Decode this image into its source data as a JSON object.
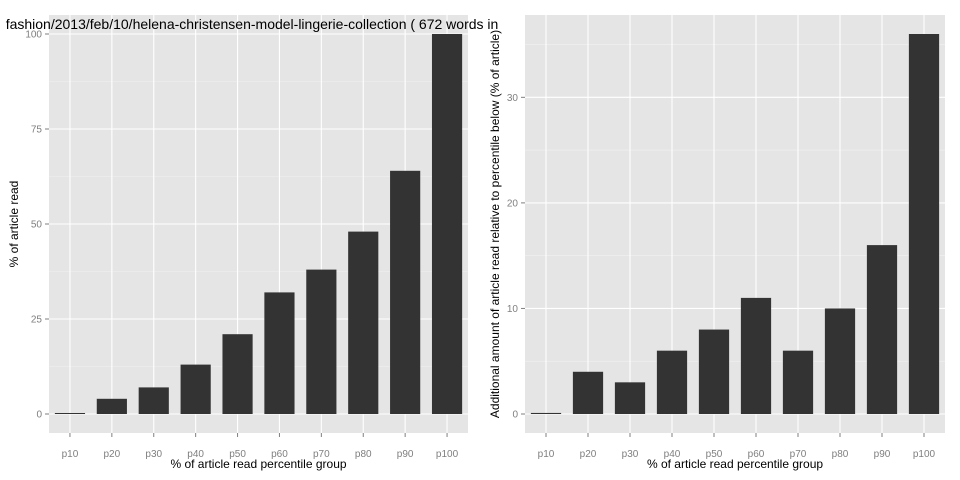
{
  "chart_data": [
    {
      "type": "bar",
      "title": "fashion/2013/feb/10/helena-christensen-model-lingerie-collection ( 672 words in",
      "xlabel": "% of article read percentile group",
      "ylabel": "% of article read",
      "categories": [
        "p10",
        "p20",
        "p30",
        "p40",
        "p50",
        "p60",
        "p70",
        "p80",
        "p90",
        "p100"
      ],
      "values": [
        0.2,
        4,
        7,
        13,
        21,
        32,
        38,
        48,
        64,
        100
      ],
      "yticks": [
        0,
        25,
        50,
        75,
        100
      ],
      "ylim": [
        -5,
        105
      ],
      "grid": true,
      "bar_color": "#333333"
    },
    {
      "type": "bar",
      "title": "",
      "xlabel": "% of article read percentile group",
      "ylabel": "Additional amount of article read relative to percentile below (% of article)",
      "categories": [
        "p10",
        "p20",
        "p30",
        "p40",
        "p50",
        "p60",
        "p70",
        "p80",
        "p90",
        "p100"
      ],
      "values": [
        0.1,
        4,
        3,
        6,
        8,
        11,
        6,
        10,
        16,
        36
      ],
      "yticks": [
        0,
        10,
        20,
        30
      ],
      "ylim": [
        -1.8,
        37.8
      ],
      "grid": true,
      "bar_color": "#333333"
    }
  ]
}
